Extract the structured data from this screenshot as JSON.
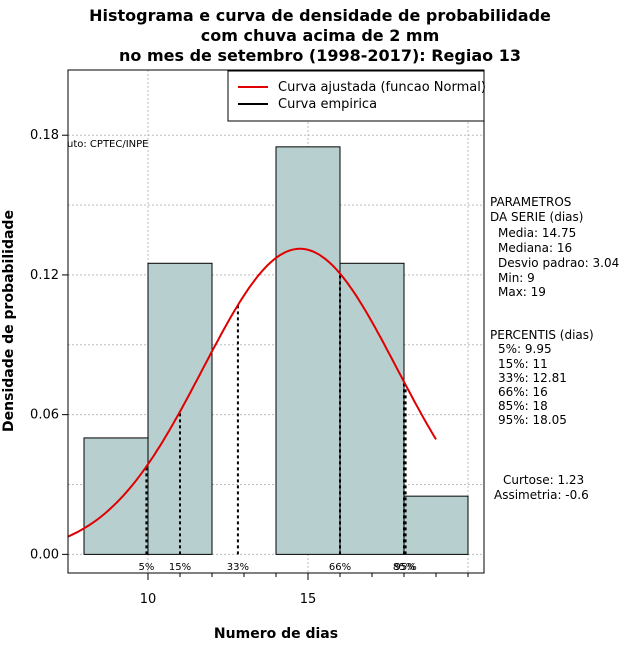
{
  "chart_data": {
    "type": "bar",
    "title_lines": [
      "Histograma e curva de densidade de probabilidade",
      "com chuva acima de 2 mm",
      "no mes de setembro (1998-2017): Regiao 13"
    ],
    "xlabel": "Numero de dias",
    "ylabel": "Densidade de probabilidade",
    "xlim": [
      7.5,
      20.5
    ],
    "ylim": [
      -0.008,
      0.208
    ],
    "x_ticks": [
      10,
      15
    ],
    "y_ticks": [
      0.0,
      0.06,
      0.12,
      0.18
    ],
    "y_tick_labels": [
      "0.00",
      "0.06",
      "0.12",
      "0.18"
    ],
    "grid": true,
    "bins": [
      {
        "from": 8,
        "to": 10,
        "density": 0.05
      },
      {
        "from": 10,
        "to": 12,
        "density": 0.125
      },
      {
        "from": 12,
        "to": 14,
        "density": 0
      },
      {
        "from": 14,
        "to": 16,
        "density": 0.175
      },
      {
        "from": 16,
        "to": 18,
        "density": 0.125
      },
      {
        "from": 18,
        "to": 20,
        "density": 0.025
      }
    ],
    "normal_fit": {
      "mean": 14.75,
      "sd": 3.04,
      "x_from": 7.5,
      "x_to": 19.0
    },
    "percentile_lines": [
      {
        "label": "5%",
        "x": 9.95
      },
      {
        "label": "15%",
        "x": 11
      },
      {
        "label": "33%",
        "x": 12.81
      },
      {
        "label": "66%",
        "x": 16
      },
      {
        "label": "85%",
        "x": 18
      },
      {
        "label": "95%",
        "x": 18.05
      }
    ],
    "legend": {
      "position": "top-right",
      "entries": [
        {
          "label": "Curva ajustada (funcao Normal)",
          "color": "#e00000"
        },
        {
          "label": "Curva empirica",
          "color": "#000000"
        }
      ]
    },
    "annotation": "uto: CPTEC/INPE",
    "bar_color": "#b8cfcf",
    "curve_color": "#e00000"
  },
  "parametros": {
    "title1": "PARAMETROS",
    "title2": "DA SERIE (dias)",
    "lines": [
      "Media: 14.75",
      "Mediana: 16",
      "Desvio padrao: 3.04",
      "Min: 9",
      "Max: 19"
    ]
  },
  "percentis": {
    "title": "PERCENTIS (dias)",
    "lines": [
      "5%: 9.95",
      "15%: 11",
      "33%: 12.81",
      "66%: 16",
      "85%: 18",
      "95%: 18.05"
    ]
  },
  "stats": {
    "curtose": "Curtose: 1.23",
    "assimetria": "Assimetria: -0.6"
  }
}
